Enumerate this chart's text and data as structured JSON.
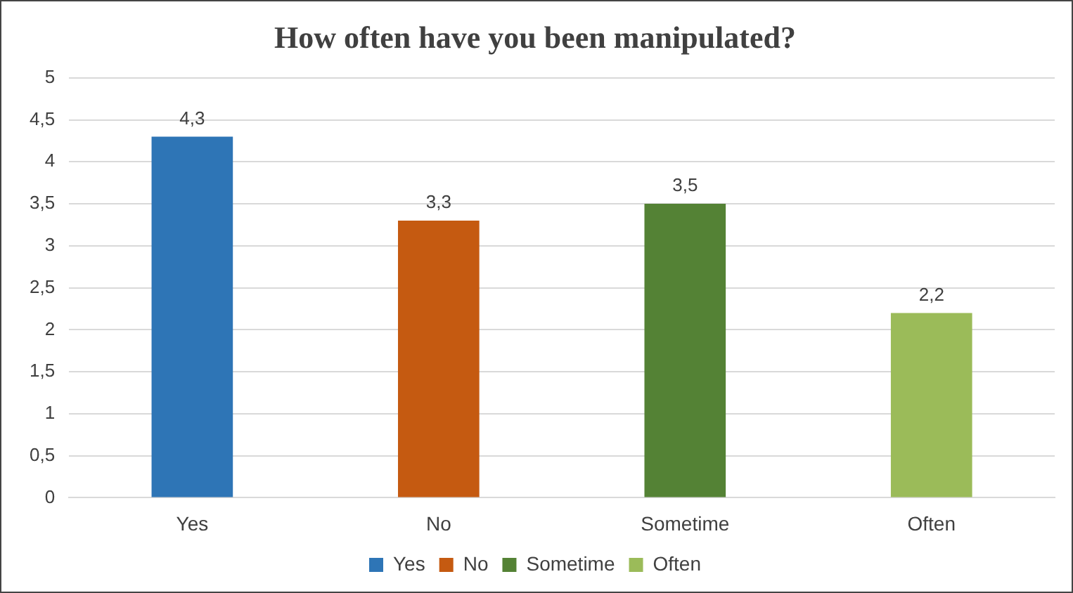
{
  "chart_data": {
    "type": "bar",
    "title": "How often have you been manipulated?",
    "categories": [
      "Yes",
      "No",
      "Sometime",
      "Often"
    ],
    "series": [
      {
        "name": "Yes",
        "color": "#2e75b6",
        "values": [
          4.3,
          null,
          null,
          null
        ],
        "value_labels": [
          "4,3",
          null,
          null,
          null
        ]
      },
      {
        "name": "No",
        "color": "#c55a11",
        "values": [
          null,
          3.3,
          null,
          null
        ],
        "value_labels": [
          null,
          "3,3",
          null,
          null
        ]
      },
      {
        "name": "Sometime",
        "color": "#548235",
        "values": [
          null,
          null,
          3.5,
          null
        ],
        "value_labels": [
          null,
          null,
          "3,5",
          null
        ]
      },
      {
        "name": "Often",
        "color": "#9bbb59",
        "values": [
          null,
          null,
          null,
          2.2
        ],
        "value_labels": [
          null,
          null,
          null,
          "2,2"
        ]
      }
    ],
    "ylim": [
      0,
      5
    ],
    "yticks": [
      0,
      {
        "value": 0.5,
        "label": "0,5"
      },
      1,
      {
        "value": 1.5,
        "label": "1,5"
      },
      2,
      {
        "value": 2.5,
        "label": "2,5"
      },
      3,
      {
        "value": 3.5,
        "label": "3,5"
      },
      4,
      {
        "value": 4.5,
        "label": "4,5"
      },
      5
    ],
    "grid": "y",
    "legend": "bottom"
  }
}
